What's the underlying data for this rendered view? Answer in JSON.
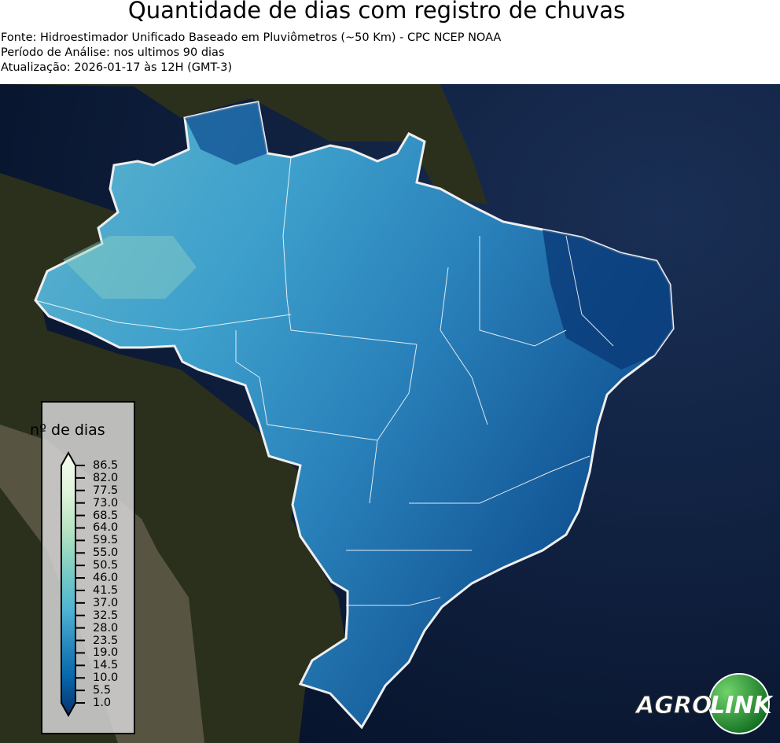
{
  "header": {
    "title": "Quantidade de dias com registro de chuvas",
    "source": "Fonte: Hidroestimador Unificado Baseado em Pluviômetros (~50 Km) - CPC NCEP NOAA",
    "period": "Período de Análise: nos ultimos 90 dias",
    "updated": "Atualização: 2026-01-17 às 12H (GMT-3)"
  },
  "legend": {
    "title": "nº de dias",
    "ticks": [
      "86.5",
      "82.0",
      "77.5",
      "73.0",
      "68.5",
      "64.0",
      "59.5",
      "55.0",
      "50.5",
      "46.0",
      "41.5",
      "37.0",
      "32.5",
      "28.0",
      "23.5",
      "19.0",
      "14.5",
      "10.0",
      "5.5",
      "1.0"
    ],
    "colors": [
      "#f7fcf0",
      "#e0f3db",
      "#ccebc5",
      "#a8ddb5",
      "#7bccc4",
      "#4eb3d3",
      "#2b8cbe",
      "#0868ac",
      "#084081"
    ]
  },
  "map": {
    "region": "Brasil",
    "ocean_color": "#0c1e3c",
    "land_color": "#2a2e1c",
    "border_color": "#ffffff"
  },
  "logo": {
    "text_left": "AGRO",
    "text_right": "LINK",
    "accent": "#2e9e3a"
  }
}
